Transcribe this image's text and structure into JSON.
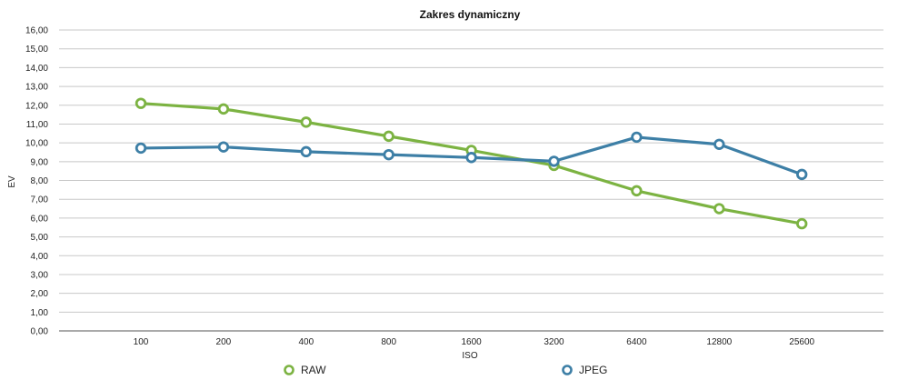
{
  "chart_data": {
    "type": "line",
    "title": "Zakres dynamiczny",
    "xlabel": "ISO",
    "ylabel": "EV",
    "categories": [
      "100",
      "200",
      "400",
      "800",
      "1600",
      "3200",
      "6400",
      "12800",
      "25600"
    ],
    "ylim": [
      0,
      16
    ],
    "y_ticks": [
      "0,00",
      "1,00",
      "2,00",
      "3,00",
      "4,00",
      "5,00",
      "6,00",
      "7,00",
      "8,00",
      "9,00",
      "10,00",
      "11,00",
      "12,00",
      "13,00",
      "14,00",
      "15,00",
      "16,00"
    ],
    "grid": true,
    "legend_position": "bottom",
    "series": [
      {
        "name": "RAW",
        "color": "#7cb342",
        "values": [
          12.1,
          11.8,
          11.1,
          10.35,
          9.6,
          8.8,
          7.45,
          6.5,
          5.7
        ]
      },
      {
        "name": "JPEG",
        "color": "#3d7fa6",
        "values": [
          9.72,
          9.78,
          9.53,
          9.37,
          9.22,
          9.02,
          10.3,
          9.92,
          8.32
        ]
      }
    ]
  }
}
